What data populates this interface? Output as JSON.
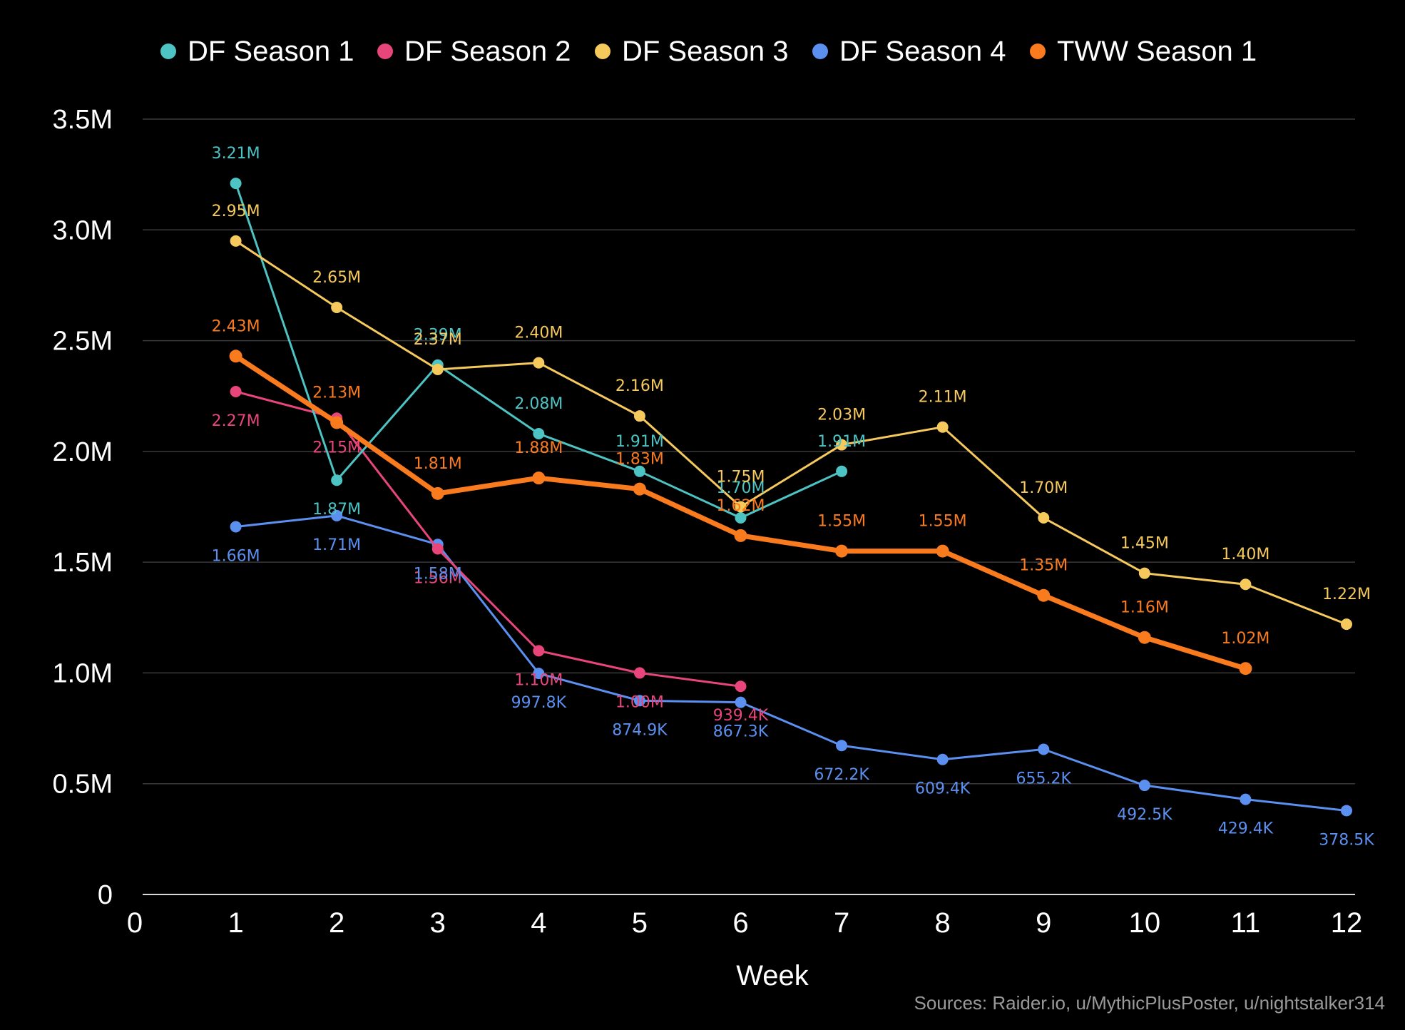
{
  "chart_data": {
    "type": "line",
    "title": "",
    "xlabel": "Week",
    "ylabel": "",
    "xlim": [
      0,
      12
    ],
    "ylim": [
      0,
      3500000
    ],
    "x_ticks": [
      "0",
      "1",
      "2",
      "3",
      "4",
      "5",
      "6",
      "7",
      "8",
      "9",
      "10",
      "11",
      "12"
    ],
    "y_ticks": [
      {
        "value": 0,
        "label": "0"
      },
      {
        "value": 500000,
        "label": "0.5M"
      },
      {
        "value": 1000000,
        "label": "1.0M"
      },
      {
        "value": 1500000,
        "label": "1.5M"
      },
      {
        "value": 2000000,
        "label": "2.0M"
      },
      {
        "value": 2500000,
        "label": "2.5M"
      },
      {
        "value": 3000000,
        "label": "3.0M"
      },
      {
        "value": 3500000,
        "label": "3.5M"
      }
    ],
    "grid": true,
    "legend_position": "top",
    "series": [
      {
        "name": "DF Season 1",
        "color": "#4dc3c3",
        "x": [
          1,
          2,
          3,
          4,
          5,
          6,
          7
        ],
        "values": [
          3210000,
          1870000,
          2390000,
          2080000,
          1910000,
          1700000,
          1910000
        ],
        "labels": [
          "3.21M",
          "1.87M",
          "2.39M",
          "2.08M",
          "1.91M",
          "1.70M",
          "1.91M"
        ]
      },
      {
        "name": "DF Season 2",
        "color": "#e8457a",
        "x": [
          1,
          2,
          3,
          4,
          5,
          6
        ],
        "values": [
          2270000,
          2150000,
          1560000,
          1100000,
          1000000,
          939400
        ],
        "labels": [
          "2.27M",
          "2.15M",
          "1.56M",
          "1.10M",
          "1.00M",
          "939.4K"
        ]
      },
      {
        "name": "DF Season 3",
        "color": "#f5c95c",
        "x": [
          1,
          2,
          3,
          4,
          5,
          6,
          7,
          8,
          9,
          10,
          11,
          12
        ],
        "values": [
          2950000,
          2650000,
          2370000,
          2400000,
          2160000,
          1750000,
          2030000,
          2110000,
          1700000,
          1450000,
          1400000,
          1220000
        ],
        "labels": [
          "2.95M",
          "2.65M",
          "2.37M",
          "2.40M",
          "2.16M",
          "1.75M",
          "2.03M",
          "2.11M",
          "1.70M",
          "1.45M",
          "1.40M",
          "1.22M"
        ]
      },
      {
        "name": "DF Season 4",
        "color": "#5b8ff0",
        "x": [
          1,
          2,
          3,
          4,
          5,
          6,
          7,
          8,
          9,
          10,
          11,
          12
        ],
        "values": [
          1660000,
          1710000,
          1580000,
          997800,
          874900,
          867300,
          672200,
          609400,
          655200,
          492500,
          429400,
          378500
        ],
        "labels": [
          "1.66M",
          "1.71M",
          "1.58M",
          "997.8K",
          "874.9K",
          "867.3K",
          "672.2K",
          "609.4K",
          "655.2K",
          "492.5K",
          "429.4K",
          "378.5K"
        ]
      },
      {
        "name": "TWW Season 1",
        "color": "#fa7a1e",
        "x": [
          1,
          2,
          3,
          4,
          5,
          6,
          7,
          8,
          9,
          10,
          11
        ],
        "values": [
          2430000,
          2130000,
          1810000,
          1880000,
          1830000,
          1620000,
          1550000,
          1550000,
          1350000,
          1160000,
          1020000
        ],
        "labels": [
          "2.43M",
          "2.13M",
          "1.81M",
          "1.88M",
          "1.83M",
          "1.62M",
          "1.55M",
          "1.55M",
          "1.35M",
          "1.16M",
          "1.02M"
        ]
      }
    ],
    "source_note": "Sources: Raider.io, u/MythicPlusPoster, u/nightstalker314"
  }
}
